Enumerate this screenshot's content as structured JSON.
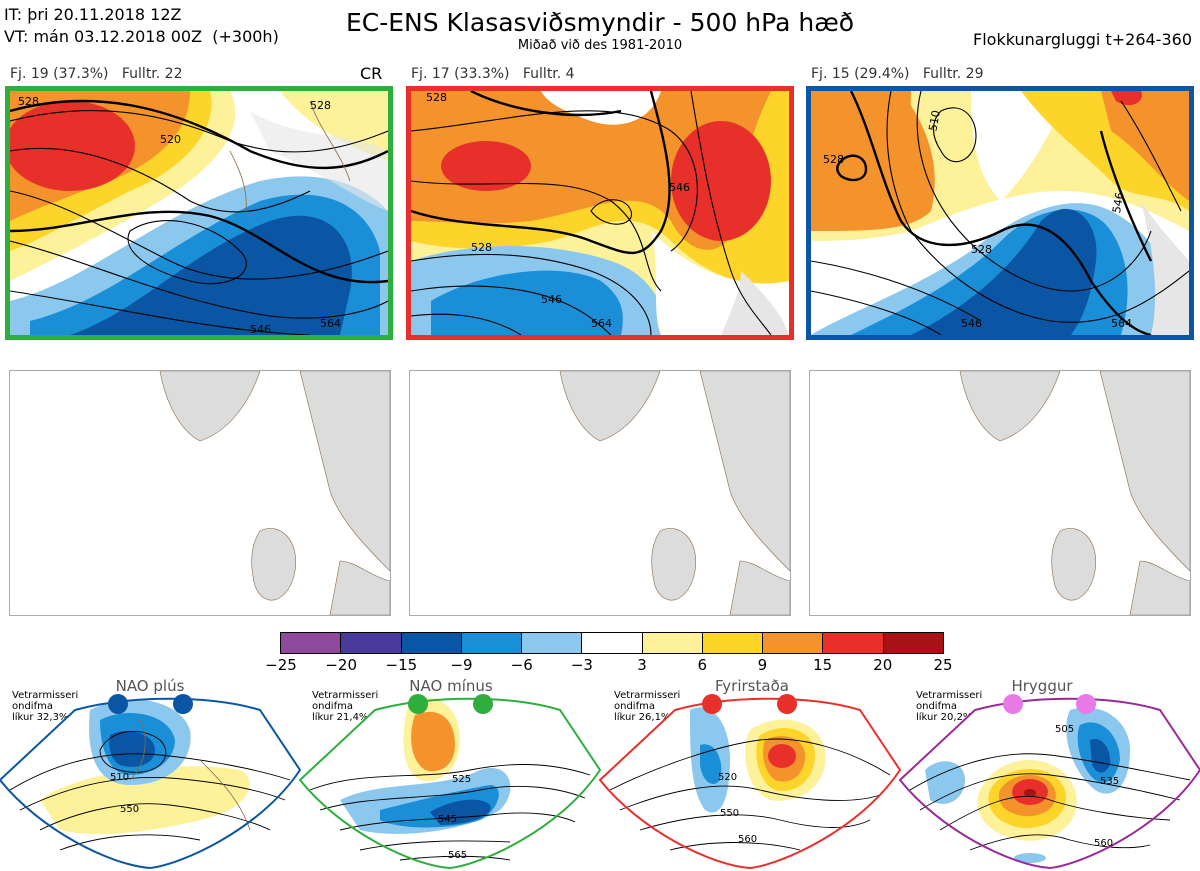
{
  "header": {
    "it_line": "IT: þri 20.11.2018 12Z",
    "vt_line": "VT: mán 03.12.2018 00Z  (+300h)",
    "title": "EC-ENS Klasasviðsmyndir - 500 hPa hæð",
    "subtitle": "Miðað við des 1981-2010",
    "right": "Flokkunargluggi t+264-360"
  },
  "clusters": [
    {
      "label": "Fj. 19 (37.3%)",
      "rep": "Fulltr. 22",
      "border": "#2eae3c",
      "tag": "CR",
      "contours": [
        "520",
        "528",
        "528",
        "546",
        "564"
      ]
    },
    {
      "label": "Fj. 17 (33.3%)",
      "rep": "Fulltr. 4",
      "border": "#e8302a",
      "contours": [
        "528",
        "528",
        "546",
        "546",
        "564"
      ]
    },
    {
      "label": "Fj. 15 (29.4%)",
      "rep": "Fulltr. 29",
      "border": "#0b56a4",
      "contours": [
        "510",
        "528",
        "528",
        "546",
        "546",
        "564"
      ]
    }
  ],
  "colorbar": {
    "ticks": [
      "−25",
      "−20",
      "−15",
      "−9",
      "−6",
      "−3",
      "3",
      "6",
      "9",
      "15",
      "20",
      "25"
    ],
    "colors": [
      "#8e4a9c",
      "#4a3a9a",
      "#0b56a4",
      "#1a8fd8",
      "#8cc8ee",
      "#ffffff",
      "#fdf29a",
      "#fdd52a",
      "#f4922c",
      "#e8302a",
      "#a81116"
    ]
  },
  "regimes": [
    {
      "name": "NAO plús",
      "note": "Vetrarmisseri\nondifma\nlíkur 32,3%",
      "color": "#0b56a4",
      "labels": [
        "510",
        "550"
      ]
    },
    {
      "name": "NAO mínus",
      "note": "Vetrarmisseri\nondifma\nlíkur 21,4%",
      "color": "#2eae3c",
      "labels": [
        "525",
        "545",
        "565"
      ]
    },
    {
      "name": "Fyrirstaða",
      "note": "Vetrarmisseri\nondifma\nlíkur 26,1%",
      "color": "#e8302a",
      "labels": [
        "520",
        "550",
        "560"
      ]
    },
    {
      "name": "Hryggur",
      "note": "Vetrarmisseri\nondifma\nlíkur 20,2%",
      "color": "#9a2a9a",
      "labels": [
        "505",
        "535",
        "560"
      ]
    }
  ]
}
